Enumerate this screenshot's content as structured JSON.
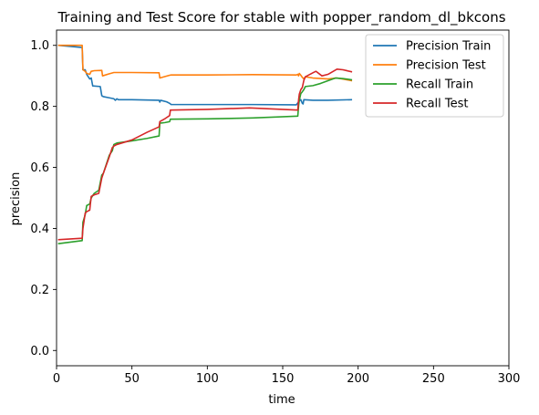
{
  "chart_data": {
    "type": "line",
    "title": "Training and Test Score for stable with popper_random_dl_bkcons",
    "xlabel": "time",
    "ylabel": "precision",
    "xlim": [
      0,
      300
    ],
    "ylim": [
      -0.05,
      1.05
    ],
    "xticks": [
      0,
      50,
      100,
      150,
      200,
      250,
      300
    ],
    "yticks": [
      0.0,
      0.2,
      0.4,
      0.6,
      0.8,
      1.0
    ],
    "xtick_labels": [
      "0",
      "50",
      "100",
      "150",
      "200",
      "250",
      "300"
    ],
    "ytick_labels": [
      "0.0",
      "0.2",
      "0.4",
      "0.6",
      "0.8",
      "1.0"
    ],
    "grid": false,
    "legend_position": "top-right",
    "series": [
      {
        "name": "Precision Train",
        "color": "#1f77b4",
        "points": [
          [
            1,
            1.0
          ],
          [
            17,
            0.993
          ],
          [
            17.5,
            0.92
          ],
          [
            19,
            0.92
          ],
          [
            20,
            0.905
          ],
          [
            22,
            0.89
          ],
          [
            23,
            0.893
          ],
          [
            24,
            0.867
          ],
          [
            29,
            0.865
          ],
          [
            30,
            0.835
          ],
          [
            31,
            0.832
          ],
          [
            35,
            0.828
          ],
          [
            38,
            0.825
          ],
          [
            39,
            0.82
          ],
          [
            40,
            0.825
          ],
          [
            41,
            0.822
          ],
          [
            50,
            0.822
          ],
          [
            68,
            0.82
          ],
          [
            68.5,
            0.814
          ],
          [
            69,
            0.82
          ],
          [
            73,
            0.815
          ],
          [
            75,
            0.81
          ],
          [
            76,
            0.806
          ],
          [
            100,
            0.806
          ],
          [
            130,
            0.806
          ],
          [
            159,
            0.805
          ],
          [
            161,
            0.818
          ],
          [
            162,
            0.822
          ],
          [
            163,
            0.81
          ],
          [
            163.5,
            0.808
          ],
          [
            164,
            0.822
          ],
          [
            170,
            0.82
          ],
          [
            180,
            0.82
          ],
          [
            196,
            0.822
          ]
        ]
      },
      {
        "name": "Precision Test",
        "color": "#ff7f0e",
        "points": [
          [
            1,
            1.0
          ],
          [
            17,
            1.0
          ],
          [
            17.5,
            0.92
          ],
          [
            19,
            0.915
          ],
          [
            20,
            0.908
          ],
          [
            22,
            0.905
          ],
          [
            23,
            0.915
          ],
          [
            25,
            0.917
          ],
          [
            30,
            0.918
          ],
          [
            30.5,
            0.9
          ],
          [
            35,
            0.907
          ],
          [
            38,
            0.911
          ],
          [
            50,
            0.911
          ],
          [
            68,
            0.91
          ],
          [
            68.5,
            0.893
          ],
          [
            72,
            0.898
          ],
          [
            75,
            0.902
          ],
          [
            76,
            0.903
          ],
          [
            100,
            0.903
          ],
          [
            130,
            0.904
          ],
          [
            159,
            0.903
          ],
          [
            160,
            0.905
          ],
          [
            160.5,
            0.9
          ],
          [
            161,
            0.908
          ],
          [
            162,
            0.902
          ],
          [
            163,
            0.895
          ],
          [
            164,
            0.89
          ],
          [
            165,
            0.897
          ],
          [
            170,
            0.893
          ],
          [
            180,
            0.89
          ],
          [
            186,
            0.893
          ],
          [
            196,
            0.884
          ]
        ]
      },
      {
        "name": "Recall Train",
        "color": "#2ca02c",
        "points": [
          [
            1,
            0.35
          ],
          [
            17,
            0.36
          ],
          [
            17.5,
            0.42
          ],
          [
            19,
            0.445
          ],
          [
            20,
            0.475
          ],
          [
            22,
            0.48
          ],
          [
            23,
            0.5
          ],
          [
            25,
            0.515
          ],
          [
            28,
            0.525
          ],
          [
            30,
            0.575
          ],
          [
            31,
            0.58
          ],
          [
            35,
            0.64
          ],
          [
            37,
            0.655
          ],
          [
            38,
            0.675
          ],
          [
            40,
            0.68
          ],
          [
            50,
            0.687
          ],
          [
            60,
            0.695
          ],
          [
            68,
            0.703
          ],
          [
            68.5,
            0.745
          ],
          [
            72,
            0.747
          ],
          [
            75,
            0.75
          ],
          [
            75.5,
            0.758
          ],
          [
            100,
            0.759
          ],
          [
            130,
            0.762
          ],
          [
            160,
            0.768
          ],
          [
            160.5,
            0.8
          ],
          [
            161,
            0.82
          ],
          [
            162,
            0.842
          ],
          [
            163,
            0.848
          ],
          [
            164,
            0.855
          ],
          [
            165,
            0.865
          ],
          [
            170,
            0.868
          ],
          [
            175,
            0.875
          ],
          [
            185,
            0.893
          ],
          [
            190,
            0.891
          ],
          [
            196,
            0.887
          ]
        ]
      },
      {
        "name": "Recall Test",
        "color": "#d62728",
        "points": [
          [
            1,
            0.363
          ],
          [
            17,
            0.368
          ],
          [
            17.5,
            0.4
          ],
          [
            19,
            0.45
          ],
          [
            20,
            0.455
          ],
          [
            22,
            0.46
          ],
          [
            23,
            0.505
          ],
          [
            25,
            0.51
          ],
          [
            28,
            0.515
          ],
          [
            30,
            0.565
          ],
          [
            31,
            0.58
          ],
          [
            35,
            0.635
          ],
          [
            37,
            0.665
          ],
          [
            38,
            0.67
          ],
          [
            40,
            0.675
          ],
          [
            50,
            0.69
          ],
          [
            60,
            0.715
          ],
          [
            68,
            0.733
          ],
          [
            68.5,
            0.75
          ],
          [
            72,
            0.76
          ],
          [
            75,
            0.77
          ],
          [
            75.5,
            0.788
          ],
          [
            100,
            0.79
          ],
          [
            128,
            0.795
          ],
          [
            160,
            0.788
          ],
          [
            160.5,
            0.82
          ],
          [
            161,
            0.84
          ],
          [
            162,
            0.855
          ],
          [
            163,
            0.862
          ],
          [
            164,
            0.885
          ],
          [
            165,
            0.897
          ],
          [
            170,
            0.91
          ],
          [
            172,
            0.915
          ],
          [
            176,
            0.9
          ],
          [
            180,
            0.905
          ],
          [
            186,
            0.922
          ],
          [
            190,
            0.92
          ],
          [
            196,
            0.913
          ]
        ]
      }
    ]
  }
}
